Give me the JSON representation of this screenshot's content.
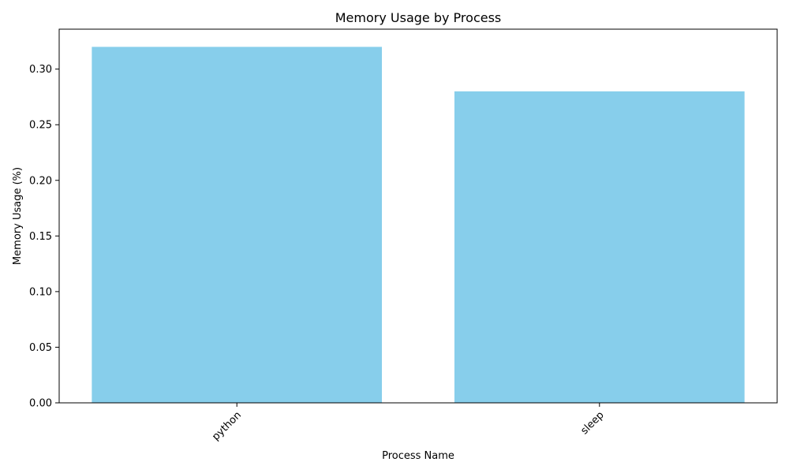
{
  "chart_data": {
    "type": "bar",
    "title": "Memory Usage by Process",
    "xlabel": "Process Name",
    "ylabel": "Memory Usage (%)",
    "categories": [
      "python",
      "sleep"
    ],
    "values": [
      0.32,
      0.28
    ],
    "ylim": [
      0,
      0.3359
    ],
    "yticks": [
      0.0,
      0.05,
      0.1,
      0.15,
      0.2,
      0.25,
      0.3
    ],
    "ytick_labels": [
      "0.00",
      "0.05",
      "0.10",
      "0.15",
      "0.20",
      "0.25",
      "0.30"
    ],
    "bar_color": "#87ceeb",
    "grid": false,
    "legend": "none"
  }
}
